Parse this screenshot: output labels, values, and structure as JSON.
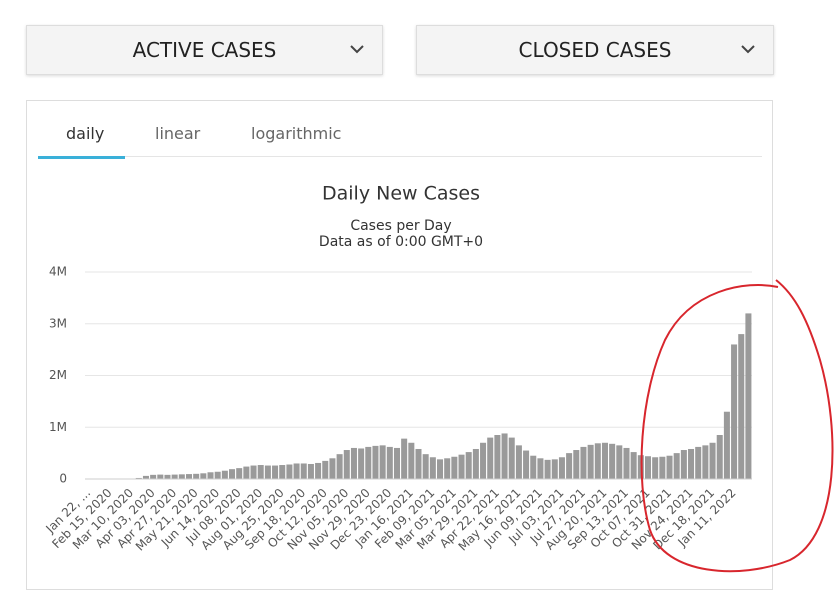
{
  "buttons": [
    "ACTIVE CASES",
    "CLOSED CASES"
  ],
  "tabs": [
    "daily",
    "linear",
    "logarithmic"
  ],
  "chart_data": {
    "type": "bar",
    "title": "Daily New Cases",
    "subtitle": "Cases per Day",
    "note": "Data as of 0:00 GMT+0",
    "categories": [
      "Jan 22, ...",
      null,
      null,
      "Feb 15, 2020",
      null,
      null,
      "Mar 10, 2020",
      null,
      null,
      "Apr 03, 2020",
      null,
      null,
      "Apr 27, 2020",
      null,
      null,
      "May 21, 2020",
      null,
      null,
      "Jun 14, 2020",
      null,
      null,
      "Jul 08, 2020",
      null,
      null,
      "Aug 01, 2020",
      null,
      null,
      "Aug 25, 2020",
      null,
      null,
      "Sep 18, 2020",
      null,
      null,
      "Oct 12, 2020",
      null,
      null,
      "Nov 05, 2020",
      null,
      null,
      "Nov 29, 2020",
      null,
      null,
      "Dec 23, 2020",
      null,
      null,
      "Jan 16, 2021",
      null,
      null,
      "Feb 09, 2021",
      null,
      null,
      "Mar 05, 2021",
      null,
      null,
      "Mar 29, 2021",
      null,
      null,
      "Apr 22, 2021",
      null,
      null,
      "May 16, 2021",
      null,
      null,
      "Jun 09, 2021",
      null,
      null,
      "Jul 03, 2021",
      null,
      null,
      "Jul 27, 2021",
      null,
      null,
      "Aug 20, 2021",
      null,
      null,
      "Sep 13, 2021",
      null,
      null,
      "Oct 07, 2021",
      null,
      null,
      "Oct 31, 2021",
      null,
      null,
      "Nov 24, 2021",
      null,
      null,
      "Dec 18, 2021",
      null,
      null,
      "Jan 11, 2022",
      null,
      null
    ],
    "values": [
      0,
      1000,
      3000,
      2000,
      1000,
      3000,
      5000,
      20000,
      60000,
      80000,
      85000,
      80000,
      85000,
      90000,
      95000,
      100000,
      110000,
      130000,
      140000,
      160000,
      190000,
      210000,
      240000,
      260000,
      270000,
      260000,
      260000,
      270000,
      280000,
      300000,
      300000,
      290000,
      310000,
      350000,
      400000,
      480000,
      560000,
      600000,
      590000,
      620000,
      640000,
      650000,
      620000,
      600000,
      780000,
      700000,
      580000,
      480000,
      420000,
      380000,
      400000,
      430000,
      470000,
      520000,
      580000,
      700000,
      800000,
      850000,
      880000,
      800000,
      650000,
      550000,
      450000,
      400000,
      370000,
      380000,
      420000,
      500000,
      560000,
      620000,
      660000,
      690000,
      700000,
      680000,
      650000,
      600000,
      520000,
      460000,
      440000,
      420000,
      430000,
      450000,
      500000,
      560000,
      580000,
      620000,
      650000,
      700000,
      850000,
      1300000,
      2600000,
      2800000,
      3200000
    ],
    "color": "#9a9a9a",
    "ylim": [
      0,
      4000000
    ],
    "yticks": [
      0,
      {
        "value": 1000000,
        "label": "1M"
      },
      {
        "value": 2000000,
        "label": "2M"
      },
      {
        "value": 3000000,
        "label": "3M"
      },
      {
        "value": 4000000,
        "label": "4M"
      }
    ],
    "grid": true
  }
}
